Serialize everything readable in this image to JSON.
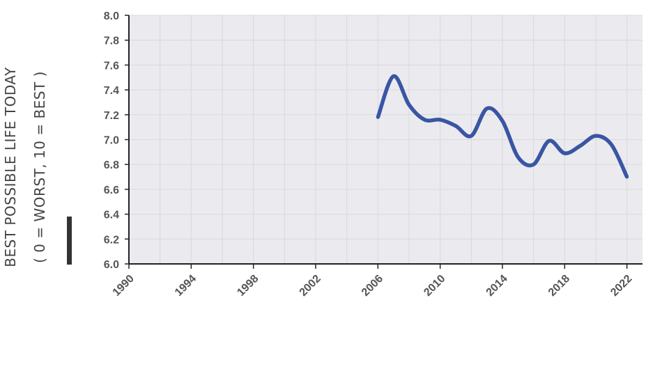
{
  "chart_data": {
    "type": "line",
    "ylabel_line1": "BEST POSSIBLE LIFE TODAY",
    "ylabel_line2": "( 0 = WORST, 10 = BEST )",
    "xlim": [
      1990,
      2023
    ],
    "ylim": [
      6.0,
      8.0
    ],
    "x_ticks": [
      1990,
      1994,
      1998,
      2002,
      2006,
      2010,
      2014,
      2018,
      2022
    ],
    "y_ticks": [
      "6.0",
      "6.2",
      "6.4",
      "6.6",
      "6.8",
      "7.0",
      "7.2",
      "7.4",
      "7.6",
      "7.8",
      "8.0"
    ],
    "grid": true,
    "series": [
      {
        "color": "#3a55a4",
        "points": [
          [
            2006,
            7.18
          ],
          [
            2007,
            7.51
          ],
          [
            2008,
            7.28
          ],
          [
            2009,
            7.16
          ],
          [
            2010,
            7.16
          ],
          [
            2011,
            7.11
          ],
          [
            2012,
            7.03
          ],
          [
            2013,
            7.25
          ],
          [
            2014,
            7.15
          ],
          [
            2015,
            6.86
          ],
          [
            2016,
            6.8
          ],
          [
            2017,
            6.99
          ],
          [
            2018,
            6.89
          ],
          [
            2019,
            6.95
          ],
          [
            2020,
            7.03
          ],
          [
            2021,
            6.96
          ],
          [
            2022,
            6.7
          ]
        ]
      }
    ],
    "colors": {
      "plot_background": "#ebebef",
      "grid": "#d8d8dd",
      "axis": "#222222",
      "marker_bar": "#333333"
    }
  }
}
